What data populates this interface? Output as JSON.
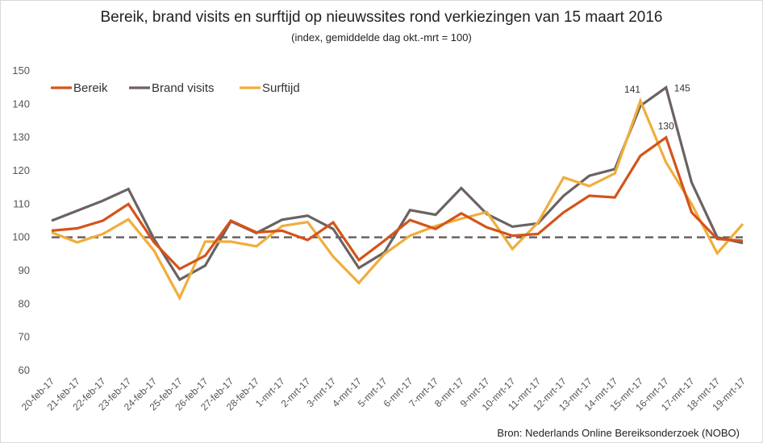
{
  "chart_data": {
    "type": "line",
    "title": "Bereik, brand visits en surftijd op nieuwssites rond verkiezingen van 15 maart 2016",
    "subtitle": "(index, gemiddelde dag okt.-mrt = 100)",
    "source": "Bron: Nederlands Online Bereiksonderzoek (NOBO)",
    "categories": [
      "20-feb-17",
      "21-feb-17",
      "22-feb-17",
      "23-feb-17",
      "24-feb-17",
      "25-feb-17",
      "26-feb-17",
      "27-feb-17",
      "28-feb-17",
      "1-mrt-17",
      "2-mrt-17",
      "3-mrt-17",
      "4-mrt-17",
      "5-mrt-17",
      "6-mrt-17",
      "7-mrt-17",
      "8-mrt-17",
      "9-mrt-17",
      "10-mrt-17",
      "11-mrt-17",
      "12-mrt-17",
      "13-mrt-17",
      "14-mrt-17",
      "15-mrt-17",
      "16-mrt-17",
      "17-mrt-17",
      "18-mrt-17",
      "19-mrt-17"
    ],
    "ylim": [
      60,
      150
    ],
    "yticks": [
      "60",
      "70",
      "80",
      "90",
      "100",
      "110",
      "120",
      "130",
      "140",
      "150"
    ],
    "reference_line": 100,
    "legend_position": "top-left",
    "series": [
      {
        "name": "Bereik",
        "color": "#d4541a",
        "values": [
          102,
          102.7,
          105,
          110,
          98.5,
          90.5,
          94.5,
          105,
          101.5,
          102,
          99.2,
          104.5,
          93.2,
          99,
          105.2,
          102.5,
          107.2,
          103,
          100.5,
          101,
          107.5,
          112.5,
          112,
          124.5,
          130,
          107.5,
          99.5,
          99
        ]
      },
      {
        "name": "Brand visits",
        "color": "#6b6262",
        "values": [
          105,
          108,
          111,
          114.5,
          99.5,
          87.3,
          91.5,
          104.8,
          101.3,
          105.3,
          106.5,
          102.5,
          90.8,
          95.5,
          108.2,
          106.8,
          114.8,
          107,
          103.2,
          104.2,
          112.5,
          118.5,
          120.5,
          139.5,
          145,
          116.5,
          100,
          98.3
        ]
      },
      {
        "name": "Surftijd",
        "color": "#f0ad3c",
        "values": [
          101.5,
          98.5,
          101,
          105.4,
          96,
          81.8,
          98.7,
          98.7,
          97.3,
          103.4,
          104.6,
          94.2,
          86.3,
          95,
          100.5,
          103.4,
          105.6,
          107.6,
          96.5,
          104.5,
          118,
          115.4,
          119.2,
          141,
          122.5,
          110,
          95.2,
          104
        ]
      }
    ],
    "data_labels": [
      {
        "text": "141",
        "series": "Surftijd",
        "index": 23
      },
      {
        "text": "145",
        "series": "Brand visits",
        "index": 24
      },
      {
        "text": "130",
        "series": "Bereik",
        "index": 24
      }
    ]
  }
}
